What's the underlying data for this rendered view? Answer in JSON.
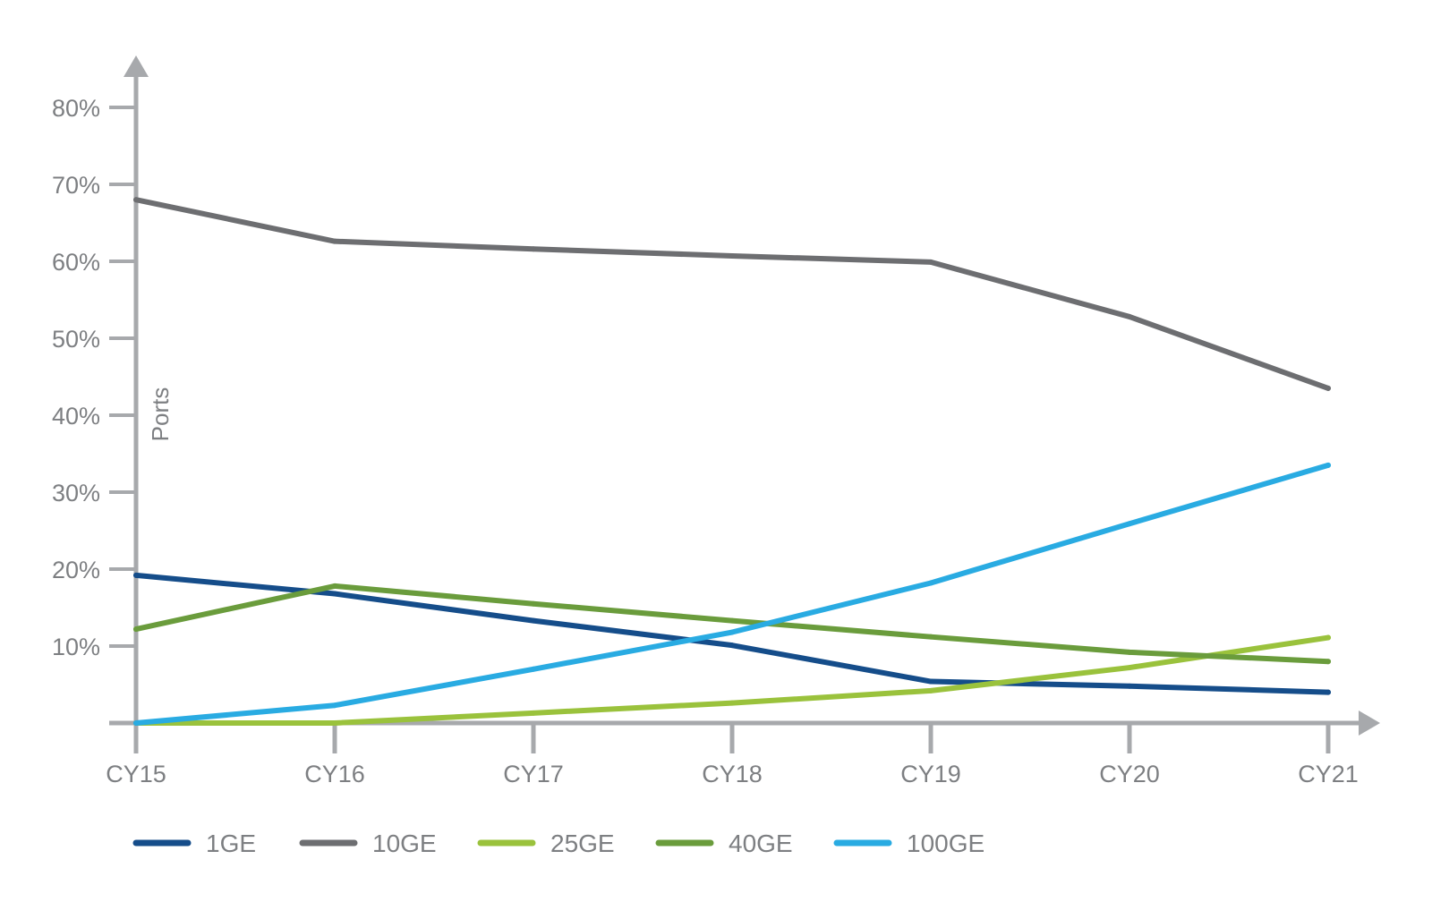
{
  "chart_data": {
    "type": "line",
    "title": "",
    "xlabel": "",
    "ylabel": "Ports",
    "ylim": [
      0,
      80
    ],
    "y_tick_values": [
      10,
      20,
      30,
      40,
      50,
      60,
      70,
      80
    ],
    "y_tick_labels": [
      "10%",
      "20%",
      "30%",
      "40%",
      "50%",
      "60%",
      "70%",
      "80%"
    ],
    "categories": [
      "CY15",
      "CY16",
      "CY17",
      "CY18",
      "CY19",
      "CY20",
      "CY21"
    ],
    "grid": false,
    "legend_position": "bottom",
    "axis_color": "#a7a9ac",
    "series": [
      {
        "name": "1GE",
        "color": "#154d8a",
        "values": [
          19.2,
          16.8,
          13.3,
          10.1,
          5.4,
          4.8,
          4.0
        ]
      },
      {
        "name": "10GE",
        "color": "#6d6e71",
        "values": [
          68.0,
          62.6,
          61.6,
          60.7,
          59.9,
          52.8,
          43.5
        ]
      },
      {
        "name": "25GE",
        "color": "#9ac23c",
        "values": [
          0.0,
          0.0,
          1.3,
          2.6,
          4.2,
          7.2,
          11.1
        ]
      },
      {
        "name": "40GE",
        "color": "#6a9c3c",
        "values": [
          12.2,
          17.8,
          15.5,
          13.3,
          11.2,
          9.2,
          8.0
        ]
      },
      {
        "name": "100GE",
        "color": "#29abe2",
        "values": [
          0.0,
          2.3,
          7.0,
          11.8,
          18.2,
          25.9,
          33.5
        ]
      }
    ]
  }
}
